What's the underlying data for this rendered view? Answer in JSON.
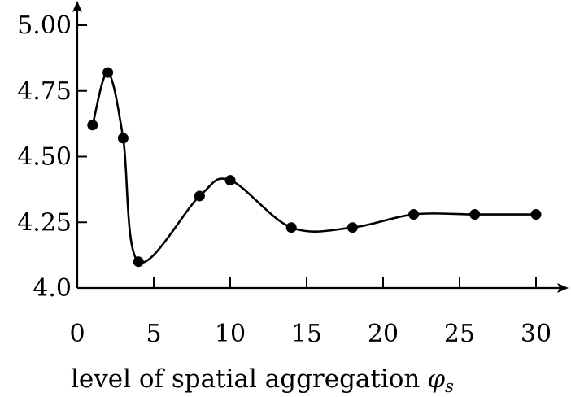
{
  "chart_data": {
    "type": "line",
    "title": "",
    "xlabel": "level of spatial aggregation",
    "xlabel_symbol": "φ",
    "xlabel_subscript": "s",
    "ylabel": "",
    "xlim": [
      0,
      31.5
    ],
    "ylim": [
      4.0,
      5.1
    ],
    "x_ticks": [
      0,
      5,
      10,
      15,
      20,
      25,
      30
    ],
    "x_tick_labels": [
      "0",
      "5",
      "10",
      "15",
      "20",
      "25",
      "30"
    ],
    "y_ticks": [
      4.0,
      4.25,
      4.5,
      4.75,
      5.0
    ],
    "y_tick_labels": [
      "4.0",
      "4.25",
      "4.50",
      "4.75",
      "5.00"
    ],
    "grid": false,
    "legend": "none",
    "series": [
      {
        "x": [
          1,
          2,
          3,
          4,
          8,
          10,
          14,
          18,
          22,
          26,
          30
        ],
        "y": [
          4.62,
          4.82,
          4.57,
          4.1,
          4.35,
          4.41,
          4.23,
          4.23,
          4.28,
          4.28,
          4.28
        ]
      }
    ],
    "colors": {
      "line": "#000000",
      "marker": "#000000"
    }
  }
}
